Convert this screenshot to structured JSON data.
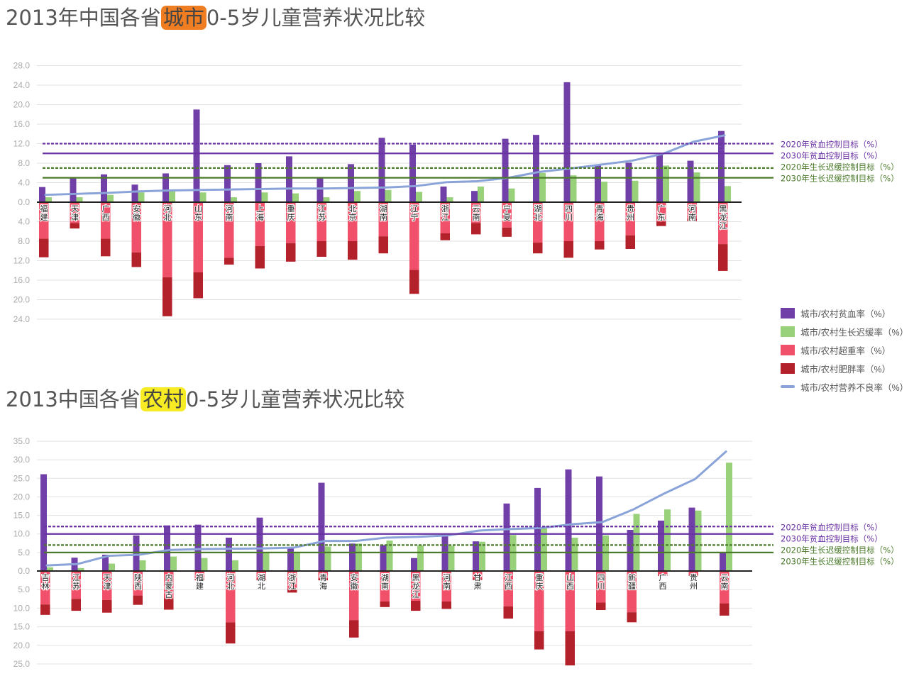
{
  "titles": {
    "urban": {
      "before": "2013年中国各省",
      "highlight": "城市",
      "after": "0-5岁儿童营养状况比较",
      "highlight_color": "#ef7d22"
    },
    "rural": {
      "before": "2013中国各省",
      "highlight": "农村",
      "after": "0-5岁儿童营养状况比较",
      "highlight_color": "#f7ec23"
    }
  },
  "colors": {
    "anemia": "#7040a8",
    "stunting": "#98d17a",
    "overweight": "#f0506a",
    "obesity": "#b3222a",
    "malnutrition": "#8aa3d8",
    "anemia_target": "#6a32a4",
    "stunting_target": "#4a7a2a"
  },
  "legend": [
    {
      "key": "anemia",
      "label": "城市/农村贫血率（%）",
      "kind": "box"
    },
    {
      "key": "stunting",
      "label": "城市/农村生长迟缓率（%）",
      "kind": "box"
    },
    {
      "key": "overweight",
      "label": "城市/农村超重率（%）",
      "kind": "box"
    },
    {
      "key": "obesity",
      "label": "城市/农村肥胖率（%）",
      "kind": "box"
    },
    {
      "key": "malnutrition",
      "label": "城市/农村营养不良率（%）",
      "kind": "line"
    }
  ],
  "chart_data": [
    {
      "type": "bar",
      "id": "urban",
      "title": "2013年中国各省城市0-5岁儿童营养状况比较",
      "ylim_up": [
        0,
        28
      ],
      "ylim_down": [
        0,
        24
      ],
      "yticks_up": [
        "0.0",
        "4.0",
        "8.0",
        "12.0",
        "16.0",
        "20.0",
        "24.0",
        "28.0"
      ],
      "yticks_down": [
        "4.0",
        "8.0",
        "12.0",
        "16.0",
        "20.0",
        "24.0"
      ],
      "categories": [
        "福建",
        "天津",
        "广西",
        "安徽",
        "河北",
        "山东",
        "河南",
        "上海",
        "重庆",
        "江苏",
        "北京",
        "湖南",
        "辽宁",
        "浙江",
        "云南",
        "宁夏",
        "湖北",
        "四川",
        "青海",
        "贵州",
        "广东",
        "河南",
        "黑龙江"
      ],
      "series": {
        "anemia": [
          3.1,
          5.0,
          5.7,
          3.6,
          5.9,
          19.0,
          7.6,
          8.0,
          9.4,
          5.0,
          7.8,
          13.2,
          11.8,
          3.2,
          2.3,
          13.0,
          13.8,
          24.6,
          7.5,
          8.1,
          9.8,
          8.5,
          14.6
        ],
        "stunting": [
          1.0,
          1.0,
          1.5,
          2.0,
          2.5,
          2.0,
          1.0,
          2.0,
          1.8,
          1.0,
          2.3,
          2.5,
          2.1,
          1.0,
          3.2,
          2.8,
          6.0,
          5.5,
          4.2,
          4.4,
          7.5,
          6.1,
          3.3
        ],
        "overweight": [
          7.5,
          4.3,
          7.5,
          10.3,
          15.4,
          14.4,
          11.4,
          9.0,
          8.4,
          8.0,
          8.0,
          7.0,
          13.9,
          6.4,
          4.3,
          5.2,
          8.3,
          8.0,
          8.0,
          6.8,
          4.0,
          3.4,
          8.6
        ],
        "obesity": [
          3.8,
          1.1,
          3.6,
          3.0,
          8.0,
          5.3,
          1.4,
          4.6,
          3.8,
          3.2,
          3.8,
          3.5,
          4.9,
          1.4,
          2.3,
          1.9,
          2.2,
          3.4,
          1.7,
          2.8,
          0.9,
          0.5,
          5.5
        ],
        "malnutrition": [
          1.5,
          1.7,
          1.9,
          2.2,
          2.4,
          2.5,
          2.6,
          2.7,
          2.8,
          2.8,
          2.9,
          3.0,
          3.3,
          4.1,
          4.3,
          5.0,
          6.2,
          6.9,
          7.7,
          8.5,
          9.9,
          12.4,
          13.7
        ]
      },
      "targets": [
        {
          "label": "2020年贫血控制目标（%）",
          "value": 12.0,
          "style": "dashed",
          "color_key": "anemia_target"
        },
        {
          "label": "2030年贫血控制目标（%）",
          "value": 10.0,
          "style": "solid",
          "color_key": "anemia_target"
        },
        {
          "label": "2020年生长迟缓控制目标（%）",
          "value": 7.0,
          "style": "dashed",
          "color_key": "stunting_target"
        },
        {
          "label": "2030年生长迟缓控制目标（%）",
          "value": 5.0,
          "style": "solid",
          "color_key": "stunting_target"
        }
      ]
    },
    {
      "type": "bar",
      "id": "rural",
      "title": "2013中国各省农村0-5岁儿童营养状况比较",
      "ylim_up": [
        0,
        35
      ],
      "ylim_down": [
        0,
        25
      ],
      "yticks_up": [
        "0.0",
        "5.0",
        "10.0",
        "15.0",
        "20.0",
        "25.0",
        "30.0",
        "35.0"
      ],
      "yticks_down": [
        "5.0",
        "10.0",
        "15.0",
        "20.0",
        "25.0"
      ],
      "categories": [
        "吉林",
        "江苏",
        "天津",
        "陕西",
        "内蒙古",
        "福建",
        "河北",
        "湖北",
        "浙江",
        "青海",
        "安徽",
        "湖南",
        "黑龙江",
        "河南",
        "甘肃",
        "江西",
        "重庆",
        "山西",
        "四川",
        "新疆",
        "广西",
        "贵州",
        "云南"
      ],
      "series": {
        "anemia": [
          26.1,
          3.6,
          4.4,
          9.6,
          12.3,
          12.5,
          9.0,
          14.4,
          6.1,
          23.8,
          7.4,
          7.0,
          3.5,
          9.6,
          8.0,
          18.2,
          22.4,
          27.4,
          25.5,
          11.1,
          13.6,
          17.1,
          5.0
        ],
        "stunting": [
          1.0,
          0.8,
          2.0,
          2.9,
          3.9,
          3.5,
          2.9,
          5.0,
          5.1,
          6.6,
          7.4,
          8.2,
          6.9,
          6.8,
          7.9,
          9.7,
          11.5,
          9.0,
          9.6,
          15.4,
          16.6,
          16.3,
          29.2
        ],
        "overweight": [
          9.0,
          7.5,
          7.8,
          6.6,
          7.3,
          2.0,
          13.8,
          2.0,
          4.8,
          2.0,
          13.2,
          8.2,
          8.0,
          8.2,
          2.0,
          9.5,
          16.2,
          16.2,
          8.5,
          11.1,
          1.0,
          1.0,
          8.7
        ],
        "obesity": [
          2.8,
          3.2,
          3.4,
          2.5,
          3.1,
          0.5,
          5.7,
          0.5,
          1.0,
          0.5,
          4.7,
          1.5,
          2.7,
          2.0,
          0.4,
          3.3,
          4.9,
          9.2,
          2.0,
          2.7,
          0.3,
          0.3,
          3.3
        ],
        "malnutrition": [
          1.5,
          1.9,
          4.1,
          4.4,
          5.7,
          5.9,
          6.0,
          6.1,
          6.3,
          8.1,
          8.1,
          9.0,
          9.2,
          9.6,
          10.9,
          11.3,
          11.6,
          12.6,
          13.2,
          16.6,
          20.9,
          24.8,
          32.2
        ]
      },
      "targets": [
        {
          "label": "2020年贫血控制目标（%）",
          "value": 12.0,
          "style": "dashed",
          "color_key": "anemia_target"
        },
        {
          "label": "2030年贫血控制目标（%）",
          "value": 10.0,
          "style": "solid",
          "color_key": "anemia_target"
        },
        {
          "label": "2020年生长迟缓控制目标（%）",
          "value": 7.0,
          "style": "dashed",
          "color_key": "stunting_target"
        },
        {
          "label": "2030年生长迟缓控制目标（%）",
          "value": 5.0,
          "style": "solid",
          "color_key": "stunting_target"
        }
      ]
    }
  ]
}
